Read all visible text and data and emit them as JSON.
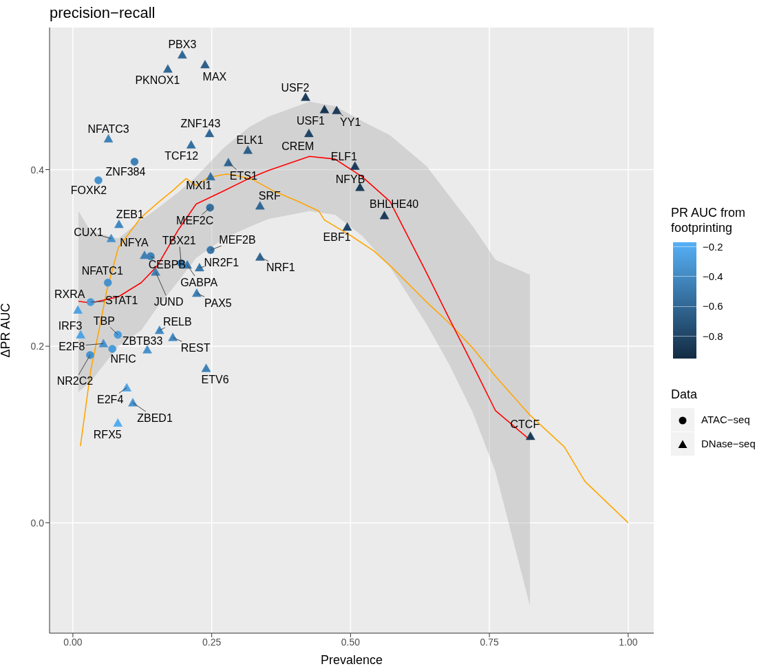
{
  "chart_data": {
    "type": "scatter",
    "title": "precision−recall",
    "xlabel": "Prevalence",
    "ylabel": "ΔPR AUC",
    "clabel": "PR AUC from footprinting",
    "legend_title": "Data",
    "legend": "right",
    "grid": true,
    "xlim": [
      -0.042,
      1.046
    ],
    "ylim": [
      -0.125,
      0.561
    ],
    "xticks": [
      {
        "value": 0,
        "label": "0.00"
      },
      {
        "value": 0.25,
        "label": "0.25"
      },
      {
        "value": 0.5,
        "label": "0.50"
      },
      {
        "value": 0.75,
        "label": "0.75"
      },
      {
        "value": 1,
        "label": "1.00"
      }
    ],
    "yticks": [
      {
        "value": 0,
        "label": "0.0"
      },
      {
        "value": 0.2,
        "label": "0.2"
      },
      {
        "value": 0.4,
        "label": "0.4"
      }
    ],
    "clim": [
      -0.95,
      -0.17
    ],
    "cticks": [
      {
        "value": -0.2,
        "label": "−0.2"
      },
      {
        "value": -0.4,
        "label": "−0.4"
      },
      {
        "value": -0.6,
        "label": "−0.6"
      },
      {
        "value": -0.8,
        "label": "−0.8"
      }
    ],
    "series": [
      {
        "name": "ATAC−seq",
        "marker": "circle",
        "colors": [
          "#3e81b6",
          "#4792cd",
          "#35709f",
          "#3e81b6",
          "#3e81b6",
          "#3a78ab",
          "#4792cd",
          "#4b9bd9",
          "#4b9bd9",
          "#4b9bd9",
          "#4792cd"
        ],
        "x": [
          0.111,
          0.046,
          0.247,
          0.14,
          0.195,
          0.248,
          0.063,
          0.032,
          0.081,
          0.071,
          0.031
        ],
        "values": [
          0.409,
          0.388,
          0.357,
          0.302,
          0.294,
          0.309,
          0.272,
          0.25,
          0.213,
          0.197,
          0.19
        ],
        "cvalues": [
          -0.45,
          -0.35,
          -0.55,
          -0.45,
          -0.45,
          -0.5,
          -0.35,
          -0.3,
          -0.3,
          -0.3,
          -0.35
        ]
      },
      {
        "name": "DNase−seq",
        "marker": "triangle",
        "colors": [
          "#316794",
          "#316794",
          "#2d5f88",
          "#3e81b6",
          "#316794",
          "#35709f",
          "#2d5f88",
          "#316794",
          "#35709f",
          "#316794",
          "#4289c2",
          "#4792cd",
          "#3e81b6",
          "#3a78ab",
          "#3a78ab",
          "#316794",
          "#3e81b6",
          "#3e81b6",
          "#4fa3e5",
          "#4fa3e5",
          "#4289c2",
          "#4289c2",
          "#4792cd",
          "#4792cd",
          "#3e81b6",
          "#4fa3e5",
          "#4792cd",
          "#53acf0",
          "#1c3c5a",
          "#17344f",
          "#1c3c5a",
          "#204566",
          "#1c3c5a",
          "#1c3c5a",
          "#1c3c5a",
          "#204566",
          "#1c3c5a"
        ],
        "x": [
          0.197,
          0.171,
          0.238,
          0.064,
          0.246,
          0.213,
          0.315,
          0.28,
          0.248,
          0.337,
          0.083,
          0.069,
          0.129,
          0.206,
          0.228,
          0.337,
          0.149,
          0.223,
          0.009,
          0.014,
          0.156,
          0.18,
          0.134,
          0.055,
          0.24,
          0.097,
          0.108,
          0.081,
          0.419,
          0.453,
          0.475,
          0.425,
          0.508,
          0.517,
          0.561,
          0.494,
          0.824
        ],
        "values": [
          0.53,
          0.514,
          0.519,
          0.435,
          0.441,
          0.428,
          0.422,
          0.408,
          0.392,
          0.359,
          0.338,
          0.322,
          0.303,
          0.292,
          0.289,
          0.301,
          0.284,
          0.26,
          0.241,
          0.213,
          0.218,
          0.21,
          0.196,
          0.203,
          0.175,
          0.153,
          0.136,
          0.113,
          0.482,
          0.468,
          0.467,
          0.441,
          0.404,
          0.38,
          0.348,
          0.335,
          0.098
        ],
        "cvalues": [
          -0.6,
          -0.6,
          -0.65,
          -0.45,
          -0.6,
          -0.55,
          -0.65,
          -0.6,
          -0.55,
          -0.6,
          -0.4,
          -0.35,
          -0.45,
          -0.5,
          -0.5,
          -0.6,
          -0.45,
          -0.45,
          -0.25,
          -0.25,
          -0.4,
          -0.4,
          -0.35,
          -0.35,
          -0.45,
          -0.25,
          -0.35,
          -0.2,
          -0.85,
          -0.9,
          -0.85,
          -0.8,
          -0.85,
          -0.85,
          -0.85,
          -0.8,
          -0.85
        ]
      },
      {
        "type": "line",
        "color": "#ffa500",
        "x": [
          0.0136,
          0.032,
          0.047,
          0.061,
          0.082,
          0.123,
          0.156,
          0.181,
          0.204,
          0.222,
          0.243,
          0.276,
          0.29,
          0.323,
          0.364,
          0.406,
          0.443,
          0.453,
          0.501,
          0.542,
          0.575,
          0.637,
          0.678,
          0.72,
          0.761,
          0.823,
          0.885,
          0.922,
          1.0
        ],
        "values": [
          0.087,
          0.172,
          0.218,
          0.263,
          0.312,
          0.346,
          0.364,
          0.377,
          0.39,
          0.382,
          0.391,
          0.395,
          0.394,
          0.389,
          0.375,
          0.364,
          0.353,
          0.343,
          0.325,
          0.308,
          0.289,
          0.25,
          0.226,
          0.198,
          0.166,
          0.122,
          0.086,
          0.047,
          0.0
        ]
      },
      {
        "type": "line",
        "color": "#ff0000",
        "x": [
          0.01,
          0.032,
          0.082,
          0.123,
          0.152,
          0.189,
          0.222,
          0.272,
          0.317,
          0.352,
          0.426,
          0.472,
          0.521,
          0.571,
          0.637,
          0.678,
          0.72,
          0.761,
          0.823
        ],
        "values": [
          0.251,
          0.249,
          0.256,
          0.272,
          0.291,
          0.331,
          0.361,
          0.376,
          0.39,
          0.399,
          0.415,
          0.412,
          0.392,
          0.364,
          0.283,
          0.231,
          0.179,
          0.127,
          0.094
        ],
        "lower": [
          0.148,
          0.16,
          0.2,
          0.218,
          0.244,
          0.273,
          0.3,
          0.322,
          0.335,
          0.344,
          0.353,
          0.349,
          0.325,
          0.29,
          0.225,
          0.179,
          0.125,
          0.058,
          -0.094
        ],
        "upper": [
          0.353,
          0.33,
          0.322,
          0.343,
          0.356,
          0.374,
          0.392,
          0.425,
          0.448,
          0.46,
          0.477,
          0.472,
          0.455,
          0.439,
          0.404,
          0.37,
          0.336,
          0.298,
          0.281
        ]
      }
    ],
    "annotations": [
      {
        "text": "PBX3",
        "x": 0.197,
        "y": 0.53
      },
      {
        "text": "PKNOX1",
        "x": 0.171,
        "y": 0.514
      },
      {
        "text": "MAX",
        "x": 0.238,
        "y": 0.519
      },
      {
        "text": "NFATC3",
        "x": 0.064,
        "y": 0.435
      },
      {
        "text": "ZNF143",
        "x": 0.246,
        "y": 0.441
      },
      {
        "text": "TCF12",
        "x": 0.213,
        "y": 0.428
      },
      {
        "text": "ELK1",
        "x": 0.315,
        "y": 0.422
      },
      {
        "text": "ZNF384",
        "x": 0.111,
        "y": 0.409
      },
      {
        "text": "ETS1",
        "x": 0.28,
        "y": 0.408
      },
      {
        "text": "MXI1",
        "x": 0.248,
        "y": 0.392
      },
      {
        "text": "FOXK2",
        "x": 0.046,
        "y": 0.388
      },
      {
        "text": "SRF",
        "x": 0.337,
        "y": 0.359
      },
      {
        "text": "MEF2C",
        "x": 0.247,
        "y": 0.357
      },
      {
        "text": "ZEB1",
        "x": 0.083,
        "y": 0.338
      },
      {
        "text": "CUX1",
        "x": 0.069,
        "y": 0.322
      },
      {
        "text": "NFYA",
        "x": 0.129,
        "y": 0.303
      },
      {
        "text": "CEBPB",
        "x": 0.14,
        "y": 0.302
      },
      {
        "text": "TBX21",
        "x": 0.195,
        "y": 0.294
      },
      {
        "text": "GABPA",
        "x": 0.206,
        "y": 0.292
      },
      {
        "text": "NR2F1",
        "x": 0.228,
        "y": 0.289
      },
      {
        "text": "MEF2B",
        "x": 0.248,
        "y": 0.309
      },
      {
        "text": "NRF1",
        "x": 0.337,
        "y": 0.301
      },
      {
        "text": "JUND",
        "x": 0.149,
        "y": 0.284
      },
      {
        "text": "NFATC1",
        "x": 0.063,
        "y": 0.272
      },
      {
        "text": "PAX5",
        "x": 0.223,
        "y": 0.26
      },
      {
        "text": "STAT1",
        "x": 0.032,
        "y": 0.25
      },
      {
        "text": "RXRA",
        "x": 0.009,
        "y": 0.241
      },
      {
        "text": "IRF3",
        "x": 0.014,
        "y": 0.213
      },
      {
        "text": "TBP",
        "x": 0.081,
        "y": 0.213
      },
      {
        "text": "RELB",
        "x": 0.156,
        "y": 0.218
      },
      {
        "text": "REST",
        "x": 0.18,
        "y": 0.21
      },
      {
        "text": "ZBTB33",
        "x": 0.134,
        "y": 0.196
      },
      {
        "text": "E2F8",
        "x": 0.055,
        "y": 0.203
      },
      {
        "text": "NFIC",
        "x": 0.071,
        "y": 0.197
      },
      {
        "text": "NR2C2",
        "x": 0.031,
        "y": 0.19
      },
      {
        "text": "ETV6",
        "x": 0.24,
        "y": 0.175
      },
      {
        "text": "E2F4",
        "x": 0.097,
        "y": 0.153
      },
      {
        "text": "ZBED1",
        "x": 0.108,
        "y": 0.136
      },
      {
        "text": "RFX5",
        "x": 0.081,
        "y": 0.113
      },
      {
        "text": "USF2",
        "x": 0.419,
        "y": 0.482
      },
      {
        "text": "USF1",
        "x": 0.453,
        "y": 0.468
      },
      {
        "text": "YY1",
        "x": 0.475,
        "y": 0.467
      },
      {
        "text": "CREM",
        "x": 0.425,
        "y": 0.441
      },
      {
        "text": "ELF1",
        "x": 0.508,
        "y": 0.404
      },
      {
        "text": "NFYB",
        "x": 0.517,
        "y": 0.38
      },
      {
        "text": "BHLHE40",
        "x": 0.561,
        "y": 0.348
      },
      {
        "text": "EBF1",
        "x": 0.494,
        "y": 0.335
      },
      {
        "text": "CTCF",
        "x": 0.824,
        "y": 0.098
      }
    ]
  }
}
